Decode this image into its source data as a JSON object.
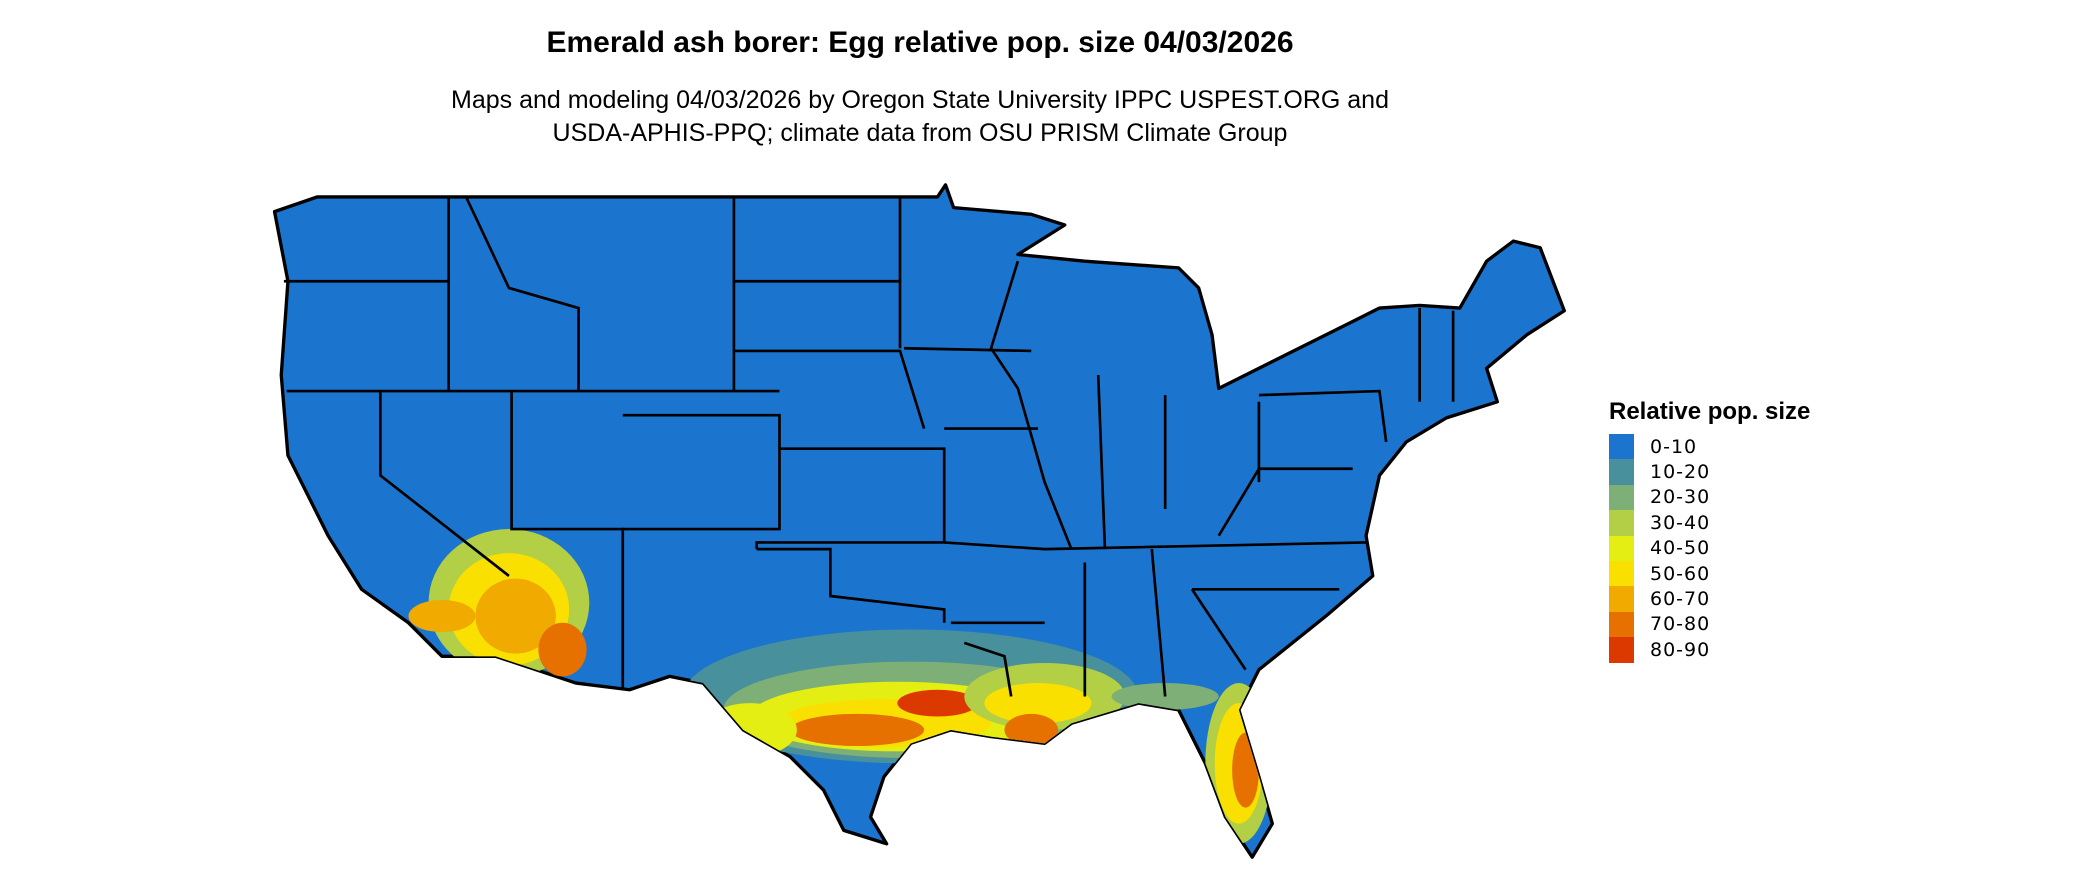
{
  "title": "Emerald ash borer: Egg relative pop. size 04/03/2026",
  "subtitle_line1": "Maps and modeling 04/03/2026 by Oregon State University IPPC USPEST.ORG and",
  "subtitle_line2": "USDA-APHIS-PPQ; climate data from OSU PRISM Climate Group",
  "legend": {
    "title": "Relative pop. size",
    "items": [
      {
        "label": "0-10",
        "color": "#1B75CF"
      },
      {
        "label": "10-20",
        "color": "#48909B"
      },
      {
        "label": "20-30",
        "color": "#7DAF76"
      },
      {
        "label": "30-40",
        "color": "#B2CF45"
      },
      {
        "label": "40-50",
        "color": "#E5EE13"
      },
      {
        "label": "50-60",
        "color": "#FAE000"
      },
      {
        "label": "60-70",
        "color": "#F0AA00"
      },
      {
        "label": "70-80",
        "color": "#E67100"
      },
      {
        "label": "80-90",
        "color": "#DC3900"
      }
    ]
  },
  "map": {
    "region": "Contiguous United States",
    "base_color": "#1B75CF",
    "border_color": "#000000"
  }
}
